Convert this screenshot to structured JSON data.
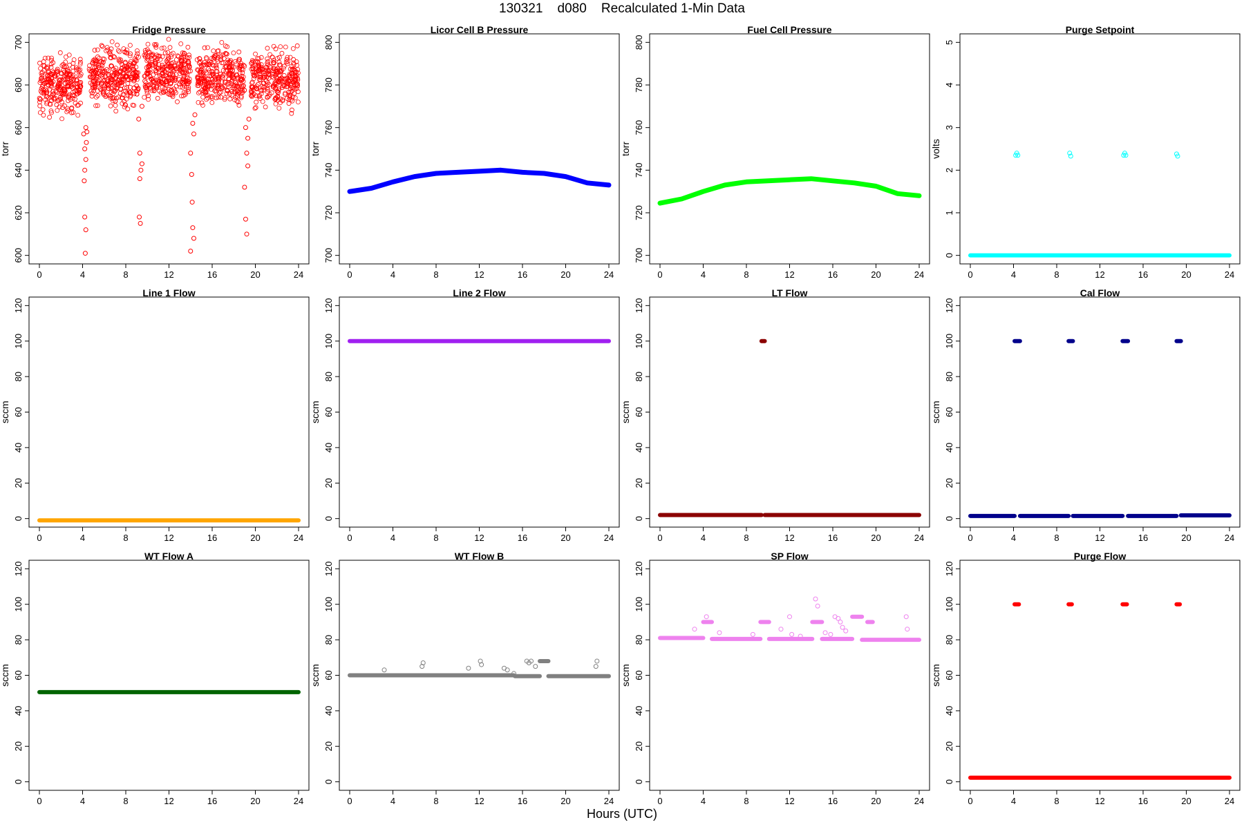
{
  "header": {
    "title": "130321    d080    Recalculated 1-Min Data"
  },
  "xlabel": "Hours (UTC)",
  "chart_data": [
    {
      "type": "scatter",
      "title": "Fridge Pressure",
      "ylabel": "torr",
      "color": "#ff0000",
      "style": "open",
      "xlim": [
        0,
        24
      ],
      "ylim": [
        600,
        700
      ],
      "xticks": [
        0,
        4,
        8,
        12,
        16,
        20,
        24
      ],
      "yticks": [
        600,
        620,
        640,
        660,
        680,
        700
      ],
      "series": [
        {
          "kind": "noise",
          "segments": [
            [
              0,
              3.9,
              680
            ],
            [
              4.6,
              9.2,
              684
            ],
            [
              9.7,
              14.0,
              685
            ],
            [
              14.6,
              19.0,
              684
            ],
            [
              19.6,
              24,
              683
            ]
          ],
          "spread": 9
        },
        {
          "kind": "points",
          "points": [
            [
              4.1,
              657
            ],
            [
              4.2,
              650
            ],
            [
              4.2,
              640
            ],
            [
              4.3,
              660
            ],
            [
              4.3,
              645
            ],
            [
              4.15,
              635
            ],
            [
              4.2,
              618
            ],
            [
              4.3,
              612
            ],
            [
              4.25,
              601
            ],
            [
              4.35,
              653
            ],
            [
              4.4,
              658
            ],
            [
              9.2,
              664
            ],
            [
              9.3,
              648
            ],
            [
              9.4,
              640
            ],
            [
              9.3,
              636
            ],
            [
              9.25,
              618
            ],
            [
              9.35,
              615
            ],
            [
              9.5,
              643
            ],
            [
              9.5,
              670
            ],
            [
              14.0,
              648
            ],
            [
              14.1,
              638
            ],
            [
              14.2,
              662
            ],
            [
              14.3,
              657
            ],
            [
              14.15,
              625
            ],
            [
              14.2,
              613
            ],
            [
              14.0,
              602
            ],
            [
              14.4,
              666
            ],
            [
              14.3,
              608
            ],
            [
              19.1,
              660
            ],
            [
              19.2,
              648
            ],
            [
              19.3,
              642
            ],
            [
              19.0,
              632
            ],
            [
              19.1,
              617
            ],
            [
              19.2,
              610
            ],
            [
              19.3,
              655
            ],
            [
              19.4,
              664
            ]
          ]
        }
      ]
    },
    {
      "type": "line",
      "title": "Licor Cell B Pressure",
      "ylabel": "torr",
      "color": "#0000ff",
      "style": "filled",
      "xlim": [
        0,
        24
      ],
      "ylim": [
        700,
        800
      ],
      "xticks": [
        0,
        4,
        8,
        12,
        16,
        20,
        24
      ],
      "yticks": [
        700,
        720,
        740,
        760,
        780,
        800
      ],
      "series": [
        {
          "kind": "curve",
          "points": [
            [
              0,
              730
            ],
            [
              2,
              731.5
            ],
            [
              4,
              734.5
            ],
            [
              6,
              737
            ],
            [
              8,
              738.5
            ],
            [
              10,
              739
            ],
            [
              12,
              739.5
            ],
            [
              14,
              740
            ],
            [
              16,
              739
            ],
            [
              18,
              738.5
            ],
            [
              20,
              737
            ],
            [
              22,
              734
            ],
            [
              24,
              733
            ]
          ]
        }
      ]
    },
    {
      "type": "line",
      "title": "Fuel Cell Pressure",
      "ylabel": "torr",
      "color": "#00ff00",
      "style": "filled",
      "xlim": [
        0,
        24
      ],
      "ylim": [
        700,
        800
      ],
      "xticks": [
        0,
        4,
        8,
        12,
        16,
        20,
        24
      ],
      "yticks": [
        700,
        720,
        740,
        760,
        780,
        800
      ],
      "series": [
        {
          "kind": "curve",
          "points": [
            [
              0,
              724.5
            ],
            [
              2,
              726.5
            ],
            [
              4,
              730
            ],
            [
              6,
              733
            ],
            [
              8,
              734.5
            ],
            [
              10,
              735
            ],
            [
              12,
              735.5
            ],
            [
              14,
              736
            ],
            [
              16,
              735
            ],
            [
              18,
              734
            ],
            [
              20,
              732.5
            ],
            [
              22,
              729
            ],
            [
              24,
              728
            ]
          ]
        }
      ]
    },
    {
      "type": "scatter",
      "title": "Purge Setpoint",
      "ylabel": "volts",
      "color": "#00ffff",
      "style": "filled",
      "xlim": [
        0,
        24
      ],
      "ylim": [
        0,
        5
      ],
      "xticks": [
        0,
        4,
        8,
        12,
        16,
        20,
        24
      ],
      "yticks": [
        0,
        1,
        2,
        3,
        4,
        5
      ],
      "series": [
        {
          "kind": "line",
          "segments": [
            [
              0,
              24,
              0
            ]
          ]
        },
        {
          "kind": "points",
          "open": true,
          "points": [
            [
              4.2,
              2.35
            ],
            [
              4.3,
              2.4
            ],
            [
              4.4,
              2.35
            ],
            [
              9.2,
              2.4
            ],
            [
              9.3,
              2.33
            ],
            [
              14.2,
              2.35
            ],
            [
              14.3,
              2.4
            ],
            [
              14.4,
              2.35
            ],
            [
              19.1,
              2.38
            ],
            [
              19.2,
              2.33
            ]
          ]
        }
      ]
    },
    {
      "type": "line",
      "title": "Line 1 Flow",
      "ylabel": "sccm",
      "color": "#ffa500",
      "style": "filled",
      "xlim": [
        0,
        24
      ],
      "ylim": [
        0,
        120
      ],
      "xticks": [
        0,
        4,
        8,
        12,
        16,
        20,
        24
      ],
      "yticks": [
        0,
        20,
        40,
        60,
        80,
        100,
        120
      ],
      "series": [
        {
          "kind": "line",
          "segments": [
            [
              0,
              24,
              -1
            ]
          ]
        }
      ]
    },
    {
      "type": "line",
      "title": "Line 2 Flow",
      "ylabel": "sccm",
      "color": "#a020f0",
      "style": "filled",
      "xlim": [
        0,
        24
      ],
      "ylim": [
        0,
        120
      ],
      "xticks": [
        0,
        4,
        8,
        12,
        16,
        20,
        24
      ],
      "yticks": [
        0,
        20,
        40,
        60,
        80,
        100,
        120
      ],
      "series": [
        {
          "kind": "line",
          "segments": [
            [
              0,
              24,
              100
            ]
          ]
        }
      ]
    },
    {
      "type": "scatter",
      "title": "LT Flow",
      "ylabel": "sccm",
      "color": "#8b0000",
      "style": "filled",
      "xlim": [
        0,
        24
      ],
      "ylim": [
        0,
        120
      ],
      "xticks": [
        0,
        4,
        8,
        12,
        16,
        20,
        24
      ],
      "yticks": [
        0,
        20,
        40,
        60,
        80,
        100,
        120
      ],
      "series": [
        {
          "kind": "line",
          "segments": [
            [
              0,
              9.4,
              2
            ],
            [
              9.7,
              24,
              2
            ]
          ]
        },
        {
          "kind": "line",
          "segments": [
            [
              9.4,
              9.7,
              100
            ]
          ]
        }
      ]
    },
    {
      "type": "scatter",
      "title": "Cal Flow",
      "ylabel": "sccm",
      "color": "#00008b",
      "style": "filled",
      "xlim": [
        0,
        24
      ],
      "ylim": [
        0,
        120
      ],
      "xticks": [
        0,
        4,
        8,
        12,
        16,
        20,
        24
      ],
      "yticks": [
        0,
        20,
        40,
        60,
        80,
        100,
        120
      ],
      "series": [
        {
          "kind": "line",
          "segments": [
            [
              0,
              4.1,
              1.5
            ],
            [
              4.6,
              9.1,
              1.5
            ],
            [
              9.5,
              14.1,
              1.5
            ],
            [
              14.6,
              19.1,
              1.5
            ],
            [
              19.5,
              24,
              1.8
            ]
          ]
        },
        {
          "kind": "line",
          "segments": [
            [
              4.1,
              4.6,
              100
            ],
            [
              9.1,
              9.5,
              100
            ],
            [
              14.1,
              14.6,
              100
            ],
            [
              19.1,
              19.5,
              100
            ]
          ]
        }
      ]
    },
    {
      "type": "line",
      "title": "WT Flow A",
      "ylabel": "sccm",
      "color": "#006400",
      "style": "filled",
      "xlim": [
        0,
        24
      ],
      "ylim": [
        0,
        120
      ],
      "xticks": [
        0,
        4,
        8,
        12,
        16,
        20,
        24
      ],
      "yticks": [
        0,
        20,
        40,
        60,
        80,
        100,
        120
      ],
      "series": [
        {
          "kind": "line",
          "segments": [
            [
              0,
              24,
              50.5
            ]
          ]
        }
      ]
    },
    {
      "type": "scatter",
      "title": "WT Flow B",
      "ylabel": "sccm",
      "color": "#808080",
      "style": "filled",
      "xlim": [
        0,
        24
      ],
      "ylim": [
        0,
        120
      ],
      "xticks": [
        0,
        4,
        8,
        12,
        16,
        20,
        24
      ],
      "yticks": [
        0,
        20,
        40,
        60,
        80,
        100,
        120
      ],
      "series": [
        {
          "kind": "line",
          "segments": [
            [
              0,
              15.2,
              60
            ],
            [
              15.3,
              17.6,
              59.5
            ],
            [
              18.4,
              24,
              59.5
            ]
          ]
        },
        {
          "kind": "line",
          "segments": [
            [
              17.6,
              18.4,
              68
            ]
          ]
        },
        {
          "kind": "points",
          "open": true,
          "points": [
            [
              3.2,
              63
            ],
            [
              6.8,
              67
            ],
            [
              6.7,
              65
            ],
            [
              11.0,
              64
            ],
            [
              12.1,
              68
            ],
            [
              12.2,
              66
            ],
            [
              14.3,
              64
            ],
            [
              14.6,
              63
            ],
            [
              15.2,
              61
            ],
            [
              16.4,
              68
            ],
            [
              16.6,
              67
            ],
            [
              16.8,
              68
            ],
            [
              17.2,
              65
            ],
            [
              22.9,
              68
            ],
            [
              22.8,
              65
            ]
          ]
        }
      ]
    },
    {
      "type": "scatter",
      "title": "SP Flow",
      "ylabel": "sccm",
      "color": "#ee82ee",
      "style": "filled",
      "xlim": [
        0,
        24
      ],
      "ylim": [
        0,
        120
      ],
      "xticks": [
        0,
        4,
        8,
        12,
        16,
        20,
        24
      ],
      "yticks": [
        0,
        20,
        40,
        60,
        80,
        100,
        120
      ],
      "series": [
        {
          "kind": "line",
          "segments": [
            [
              0,
              4.0,
              81
            ],
            [
              4.8,
              9.3,
              80.5
            ],
            [
              10.1,
              14.1,
              80.5
            ],
            [
              15.0,
              17.8,
              80.5
            ],
            [
              18.7,
              24,
              80
            ]
          ]
        },
        {
          "kind": "line",
          "segments": [
            [
              4.0,
              4.8,
              90
            ],
            [
              9.3,
              10.1,
              90
            ],
            [
              14.1,
              15.0,
              90
            ],
            [
              17.8,
              18.7,
              93
            ],
            [
              19.2,
              19.7,
              90
            ]
          ]
        },
        {
          "kind": "points",
          "open": true,
          "points": [
            [
              4.3,
              93
            ],
            [
              3.2,
              86
            ],
            [
              5.5,
              84
            ],
            [
              8.6,
              83
            ],
            [
              11.2,
              86
            ],
            [
              12.0,
              93
            ],
            [
              12.2,
              83
            ],
            [
              13.0,
              82
            ],
            [
              14.4,
              103
            ],
            [
              14.6,
              99
            ],
            [
              15.3,
              84
            ],
            [
              15.8,
              83
            ],
            [
              16.2,
              93
            ],
            [
              16.5,
              92
            ],
            [
              16.7,
              90
            ],
            [
              16.9,
              87
            ],
            [
              17.2,
              85
            ],
            [
              22.8,
              93
            ],
            [
              22.9,
              86
            ]
          ]
        }
      ]
    },
    {
      "type": "scatter",
      "title": "Purge Flow",
      "ylabel": "sccm",
      "color": "#ff0000",
      "style": "filled",
      "xlim": [
        0,
        24
      ],
      "ylim": [
        0,
        120
      ],
      "xticks": [
        0,
        4,
        8,
        12,
        16,
        20,
        24
      ],
      "yticks": [
        0,
        20,
        40,
        60,
        80,
        100,
        120
      ],
      "series": [
        {
          "kind": "line",
          "segments": [
            [
              0,
              24,
              2.3
            ]
          ]
        },
        {
          "kind": "line",
          "segments": [
            [
              4.1,
              4.5,
              100
            ],
            [
              9.1,
              9.4,
              100
            ],
            [
              14.1,
              14.5,
              100
            ],
            [
              19.1,
              19.4,
              100
            ]
          ]
        }
      ]
    }
  ]
}
